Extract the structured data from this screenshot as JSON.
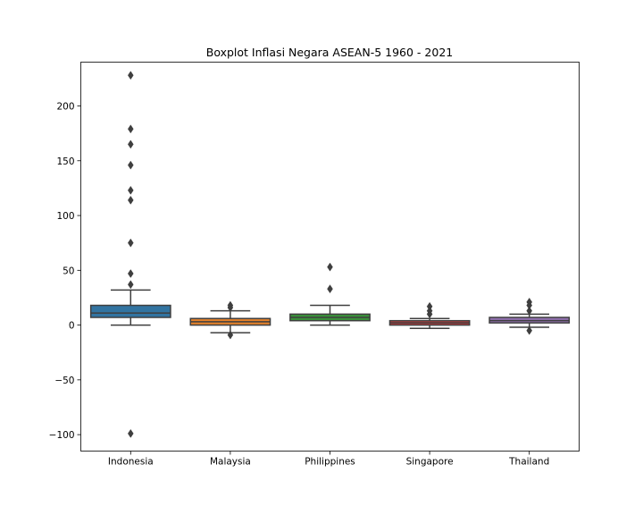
{
  "chart_data": {
    "type": "box",
    "title": "Boxplot Inflasi Negara ASEAN-5 1960 - 2021",
    "xlabel": "",
    "ylabel": "",
    "ylim": [
      -115,
      240
    ],
    "yticks": [
      -100,
      -50,
      0,
      50,
      100,
      150,
      200
    ],
    "ytick_labels": [
      "−100",
      "−50",
      "0",
      "50",
      "100",
      "150",
      "200"
    ],
    "grid": false,
    "categories": [
      "Indonesia",
      "Malaysia",
      "Philippines",
      "Singapore",
      "Thailand"
    ],
    "series": [
      {
        "category": "Indonesia",
        "color": "#3274a1",
        "whisker_low": 0,
        "q1": 7,
        "median": 11,
        "q3": 18,
        "whisker_high": 32,
        "outliers": [
          228,
          179,
          165,
          146,
          123,
          114,
          75,
          47,
          37,
          -99
        ]
      },
      {
        "category": "Malaysia",
        "color": "#e1812c",
        "whisker_low": -7,
        "q1": 0,
        "median": 3,
        "q3": 6,
        "whisker_high": 13,
        "outliers": [
          18,
          16,
          -9
        ]
      },
      {
        "category": "Philippines",
        "color": "#3a923a",
        "whisker_low": 0,
        "q1": 4,
        "median": 7,
        "q3": 10,
        "whisker_high": 18,
        "outliers": [
          53,
          33
        ]
      },
      {
        "category": "Singapore",
        "color": "#c03d3e",
        "whisker_low": -3,
        "q1": 0,
        "median": 2,
        "q3": 4,
        "whisker_high": 6,
        "outliers": [
          17,
          13,
          10
        ]
      },
      {
        "category": "Thailand",
        "color": "#9372b2",
        "whisker_low": -2,
        "q1": 2,
        "median": 4,
        "q3": 7,
        "whisker_high": 10,
        "outliers": [
          21,
          18,
          13,
          -5
        ]
      }
    ]
  }
}
